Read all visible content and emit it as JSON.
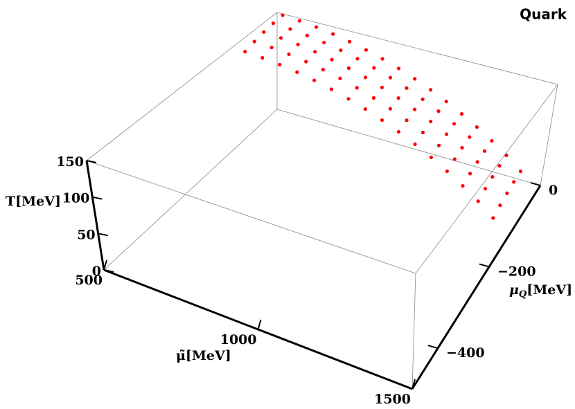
{
  "chart_data": {
    "type": "scatter3d",
    "title": "Quark",
    "xlabel": "μ̃[MeV]",
    "ylabel": {
      "symbol": "μ",
      "subscript": "Q",
      "unit": "[MeV]"
    },
    "zlabel": "T[MeV]",
    "xlim": [
      500,
      1500
    ],
    "xticks": [
      500,
      1000,
      1500
    ],
    "ylim": [
      -500,
      0
    ],
    "yticks": [
      0,
      {
        "value": -200,
        "label": "−200"
      },
      {
        "value": -400,
        "label": "−400"
      }
    ],
    "zlim": [
      0,
      150
    ],
    "zticks": [
      0,
      50,
      100,
      150
    ],
    "color": "#ff0000",
    "x": [
      520,
      520,
      520,
      520,
      520,
      580,
      580,
      580,
      580,
      580,
      640,
      640,
      640,
      640,
      640,
      700,
      700,
      700,
      700,
      700,
      760,
      760,
      760,
      760,
      760,
      820,
      820,
      820,
      820,
      820,
      880,
      880,
      880,
      880,
      880,
      940,
      940,
      940,
      940,
      940,
      1000,
      1000,
      1000,
      1000,
      1000,
      1060,
      1060,
      1060,
      1060,
      1060,
      1120,
      1120,
      1120,
      1120,
      1120,
      1180,
      1180,
      1180,
      1180,
      1180,
      1240,
      1240,
      1240,
      1240,
      1240,
      1300,
      1300,
      1300,
      1300,
      1300,
      1360,
      1360,
      1360,
      1360,
      1360,
      1420,
      1420,
      1420,
      1420,
      1420
    ],
    "y": [
      -100,
      -75,
      -50,
      -25,
      0,
      -100,
      -75,
      -50,
      -25,
      0,
      -100,
      -75,
      -50,
      -25,
      0,
      -100,
      -75,
      -50,
      -25,
      0,
      -100,
      -75,
      -50,
      -25,
      0,
      -100,
      -75,
      -50,
      -25,
      0,
      -100,
      -75,
      -50,
      -25,
      0,
      -100,
      -75,
      -50,
      -25,
      0,
      -100,
      -75,
      -50,
      -25,
      0,
      -100,
      -75,
      -50,
      -25,
      0,
      -100,
      -75,
      -50,
      -25,
      0,
      -100,
      -75,
      -50,
      -25,
      0,
      -100,
      -75,
      -50,
      -25,
      0,
      -100,
      -75,
      -50,
      -25,
      0,
      -100,
      -75,
      -50,
      -25,
      0,
      -100,
      -75,
      -50,
      -25,
      0
    ],
    "z": [
      138,
      142,
      145,
      147,
      148,
      136,
      140,
      143,
      145,
      146,
      133,
      137,
      140,
      142,
      143,
      129,
      133,
      136,
      138,
      139,
      124,
      128,
      131,
      133,
      134,
      118,
      122,
      125,
      127,
      128,
      111,
      115,
      118,
      120,
      121,
      103,
      107,
      110,
      112,
      113,
      94,
      98,
      101,
      103,
      104,
      84,
      88,
      91,
      93,
      94,
      73,
      77,
      80,
      82,
      83,
      61,
      65,
      68,
      70,
      71,
      48,
      52,
      55,
      57,
      58,
      34,
      38,
      41,
      43,
      44,
      19,
      23,
      26,
      28,
      29,
      2,
      6,
      9,
      11,
      12
    ]
  }
}
